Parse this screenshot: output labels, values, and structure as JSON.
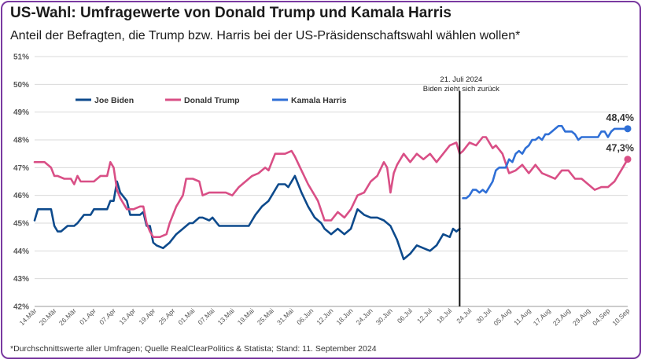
{
  "title": "US-Wahl: Umfragewerte von Donald Trump und Kamala Harris",
  "subtitle": "Anteil der Befragten, die Trump bzw. Harris bei der US-Präsidenschaftswahl wählen wollen*",
  "footnote": "*Durchschnittswerte aller Umfragen; Quelle RealClearPolitics & Statista; Stand: 11. September 2024",
  "annotation": {
    "line1": "21. Juli 2024",
    "line2": "Biden zieht sich zurück"
  },
  "end_labels": {
    "harris": "48,4%",
    "trump": "47,3%"
  },
  "chart_data": {
    "type": "line",
    "ylim": [
      42,
      51
    ],
    "y_ticks": [
      "42%",
      "43%",
      "44%",
      "45%",
      "46%",
      "47%",
      "48%",
      "49%",
      "50%",
      "51%"
    ],
    "x_ticks": [
      "14.Mär",
      "20.Mär",
      "26.Mär",
      "01.Apr",
      "07.Apr",
      "13.Apr",
      "19.Apr",
      "25.Apr",
      "01.Mai",
      "07.Mai",
      "13.Mai",
      "19.Mai",
      "25.Mai",
      "31.Mai",
      "06.Jun",
      "12.Jun",
      "18.Jun",
      "24.Jun",
      "30.Jun",
      "06.Jul",
      "12.Jul",
      "18.Jul",
      "24.Jul",
      "30.Jul",
      "05.Aug",
      "11.Aug",
      "17.Aug",
      "23.Aug",
      "29.Aug",
      "04.Sep",
      "10.Sep"
    ],
    "x_start": "14.Mär",
    "x_end": "10.Sep",
    "event_date": "21.Jul",
    "grid": true,
    "legend_position": "top-left",
    "series": [
      {
        "name": "Joe Biden",
        "color": "#0d4a8c",
        "x": [
          "14.Mär",
          "15.Mär",
          "17.Mär",
          "19.Mär",
          "20.Mär",
          "21.Mär",
          "22.Mär",
          "24.Mär",
          "26.Mär",
          "27.Mär",
          "29.Mär",
          "31.Mär",
          "01.Apr",
          "03.Apr",
          "05.Apr",
          "06.Apr",
          "07.Apr",
          "08.Apr",
          "09.Apr",
          "11.Apr",
          "12.Apr",
          "13.Apr",
          "15.Apr",
          "16.Apr",
          "17.Apr",
          "18.Apr",
          "19.Apr",
          "20.Apr",
          "22.Apr",
          "24.Apr",
          "26.Apr",
          "28.Apr",
          "30.Apr",
          "01.Mai",
          "03.Mai",
          "04.Mai",
          "06.Mai",
          "07.Mai",
          "09.Mai",
          "11.Mai",
          "13.Mai",
          "15.Mai",
          "17.Mai",
          "18.Mai",
          "20.Mai",
          "22.Mai",
          "24.Mai",
          "25.Mai",
          "27.Mai",
          "29.Mai",
          "30.Mai",
          "01.Jun",
          "03.Jun",
          "05.Jun",
          "07.Jun",
          "09.Jun",
          "10.Jun",
          "12.Jun",
          "14.Jun",
          "16.Jun",
          "18.Jun",
          "20.Jun",
          "22.Jun",
          "24.Jun",
          "26.Jun",
          "28.Jun",
          "30.Jun",
          "02.Jul",
          "04.Jul",
          "06.Jul",
          "08.Jul",
          "10.Jul",
          "12.Jul",
          "14.Jul",
          "16.Jul",
          "18.Jul",
          "19.Jul",
          "20.Jul",
          "21.Jul"
        ],
        "values": [
          45.1,
          45.5,
          45.5,
          45.5,
          44.9,
          44.7,
          44.7,
          44.9,
          44.9,
          45.0,
          45.3,
          45.3,
          45.5,
          45.5,
          45.5,
          45.8,
          45.8,
          46.5,
          46.1,
          45.8,
          45.3,
          45.3,
          45.3,
          45.4,
          44.9,
          44.9,
          44.3,
          44.2,
          44.1,
          44.3,
          44.6,
          44.8,
          45.0,
          45.0,
          45.2,
          45.2,
          45.1,
          45.2,
          44.9,
          44.9,
          44.9,
          44.9,
          44.9,
          44.9,
          45.3,
          45.6,
          45.8,
          46.0,
          46.4,
          46.4,
          46.3,
          46.7,
          46.1,
          45.6,
          45.2,
          45.0,
          44.8,
          44.6,
          44.8,
          44.6,
          44.8,
          45.5,
          45.3,
          45.2,
          45.2,
          45.1,
          44.9,
          44.4,
          43.7,
          43.9,
          44.2,
          44.1,
          44.0,
          44.2,
          44.6,
          44.5,
          44.8,
          44.7,
          44.8
        ]
      },
      {
        "name": "Donald Trump",
        "color": "#d94f86",
        "x": [
          "14.Mär",
          "17.Mär",
          "19.Mär",
          "20.Mär",
          "21.Mär",
          "23.Mär",
          "25.Mär",
          "26.Mär",
          "27.Mär",
          "28.Mär",
          "30.Mär",
          "01.Apr",
          "03.Apr",
          "05.Apr",
          "06.Apr",
          "07.Apr",
          "08.Apr",
          "09.Apr",
          "11.Apr",
          "12.Apr",
          "13.Apr",
          "15.Apr",
          "16.Apr",
          "17.Apr",
          "18.Apr",
          "19.Apr",
          "21.Apr",
          "23.Apr",
          "24.Apr",
          "26.Apr",
          "28.Apr",
          "29.Apr",
          "30.Apr",
          "01.Mai",
          "03.Mai",
          "04.Mai",
          "06.Mai",
          "07.Mai",
          "09.Mai",
          "11.Mai",
          "13.Mai",
          "15.Mai",
          "17.Mai",
          "19.Mai",
          "21.Mai",
          "23.Mai",
          "24.Mai",
          "26.Mai",
          "28.Mai",
          "29.Mai",
          "31.Mai",
          "01.Jun",
          "03.Jun",
          "05.Jun",
          "07.Jun",
          "08.Jun",
          "10.Jun",
          "12.Jun",
          "14.Jun",
          "16.Jun",
          "18.Jun",
          "20.Jun",
          "22.Jun",
          "24.Jun",
          "26.Jun",
          "28.Jun",
          "29.Jun",
          "30.Jun",
          "01.Jul",
          "02.Jul",
          "04.Jul",
          "06.Jul",
          "08.Jul",
          "10.Jul",
          "12.Jul",
          "14.Jul",
          "16.Jul",
          "18.Jul",
          "20.Jul",
          "21.Jul",
          "22.Jul",
          "24.Jul",
          "26.Jul",
          "28.Jul",
          "29.Jul",
          "31.Jul",
          "01.Aug",
          "03.Aug",
          "05.Aug",
          "07.Aug",
          "09.Aug",
          "11.Aug",
          "13.Aug",
          "15.Aug",
          "17.Aug",
          "19.Aug",
          "21.Aug",
          "23.Aug",
          "25.Aug",
          "27.Aug",
          "29.Aug",
          "31.Aug",
          "02.Sep",
          "04.Sep",
          "06.Sep",
          "08.Sep",
          "10.Sep"
        ],
        "values": [
          47.2,
          47.2,
          47.0,
          46.7,
          46.7,
          46.6,
          46.6,
          46.4,
          46.7,
          46.5,
          46.5,
          46.5,
          46.7,
          46.7,
          47.2,
          47.0,
          46.2,
          45.9,
          45.5,
          45.5,
          45.5,
          45.6,
          45.6,
          45.0,
          44.7,
          44.5,
          44.5,
          44.6,
          45.0,
          45.6,
          46.0,
          46.6,
          46.6,
          46.6,
          46.5,
          46.0,
          46.1,
          46.1,
          46.1,
          46.1,
          46.0,
          46.3,
          46.5,
          46.7,
          46.8,
          47.0,
          46.9,
          47.5,
          47.5,
          47.5,
          47.6,
          47.4,
          46.9,
          46.4,
          46.0,
          45.8,
          45.1,
          45.1,
          45.4,
          45.2,
          45.5,
          46.0,
          46.1,
          46.5,
          46.7,
          47.2,
          47.0,
          46.1,
          46.8,
          47.1,
          47.5,
          47.2,
          47.5,
          47.3,
          47.5,
          47.2,
          47.5,
          47.8,
          47.9,
          47.5,
          47.6,
          47.9,
          47.8,
          48.1,
          48.1,
          47.7,
          47.8,
          47.5,
          46.8,
          46.9,
          47.1,
          46.8,
          47.1,
          46.8,
          46.7,
          46.6,
          46.9,
          46.9,
          46.6,
          46.6,
          46.4,
          46.2,
          46.3,
          46.3,
          46.5,
          46.9,
          47.3
        ]
      },
      {
        "name": "Kamala Harris",
        "color": "#2f6fd6",
        "x": [
          "22.Jul",
          "23.Jul",
          "24.Jul",
          "25.Jul",
          "26.Jul",
          "27.Jul",
          "28.Jul",
          "29.Jul",
          "30.Jul",
          "31.Jul",
          "01.Aug",
          "02.Aug",
          "03.Aug",
          "04.Aug",
          "05.Aug",
          "06.Aug",
          "07.Aug",
          "08.Aug",
          "09.Aug",
          "10.Aug",
          "11.Aug",
          "12.Aug",
          "13.Aug",
          "14.Aug",
          "15.Aug",
          "16.Aug",
          "17.Aug",
          "18.Aug",
          "19.Aug",
          "20.Aug",
          "21.Aug",
          "22.Aug",
          "23.Aug",
          "24.Aug",
          "25.Aug",
          "26.Aug",
          "27.Aug",
          "28.Aug",
          "29.Aug",
          "30.Aug",
          "31.Aug",
          "01.Sep",
          "02.Sep",
          "03.Sep",
          "04.Sep",
          "05.Sep",
          "06.Sep",
          "07.Sep",
          "08.Sep",
          "09.Sep",
          "10.Sep"
        ],
        "values": [
          45.9,
          45.9,
          46.0,
          46.2,
          46.2,
          46.1,
          46.2,
          46.1,
          46.3,
          46.5,
          46.9,
          47.0,
          47.0,
          47.0,
          47.3,
          47.2,
          47.5,
          47.6,
          47.5,
          47.7,
          47.8,
          48.0,
          48.0,
          48.1,
          48.0,
          48.2,
          48.2,
          48.3,
          48.4,
          48.5,
          48.5,
          48.3,
          48.3,
          48.3,
          48.2,
          48.0,
          48.1,
          48.1,
          48.1,
          48.1,
          48.1,
          48.1,
          48.3,
          48.3,
          48.1,
          48.3,
          48.4,
          48.4,
          48.4,
          48.4,
          48.4
        ]
      }
    ]
  }
}
